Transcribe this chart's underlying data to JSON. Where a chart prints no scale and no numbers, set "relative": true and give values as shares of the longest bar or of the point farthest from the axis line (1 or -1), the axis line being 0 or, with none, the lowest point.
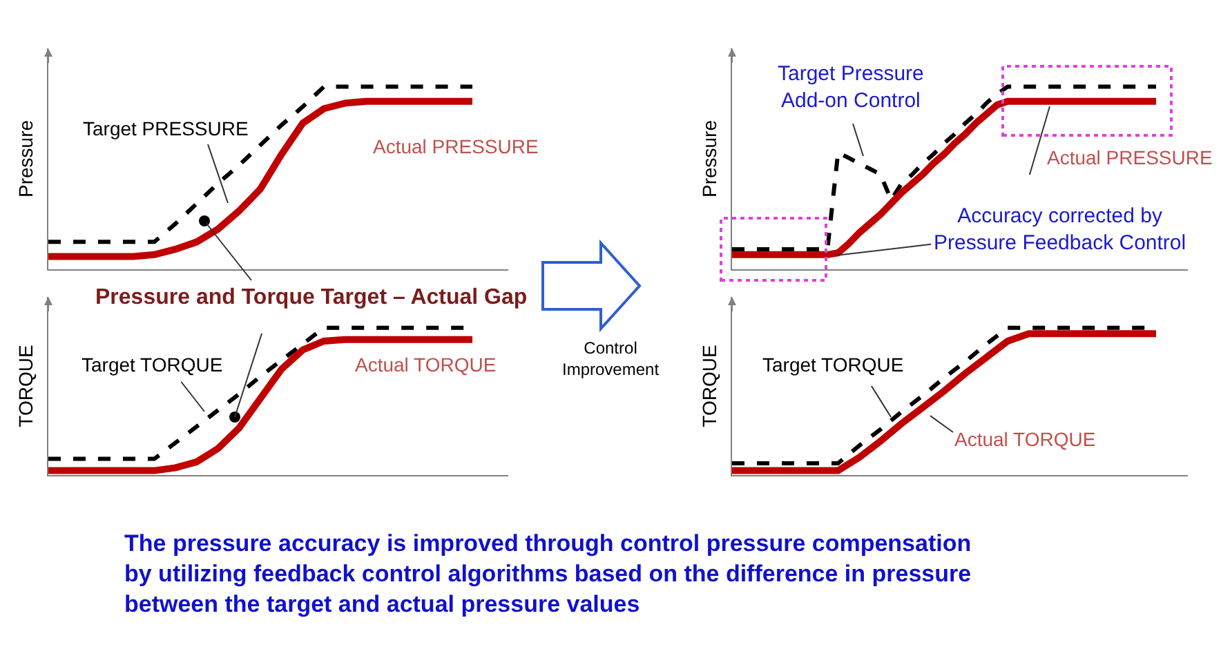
{
  "chart_data": [
    {
      "type": "line",
      "relative": true,
      "ylabel": "Pressure",
      "legend": false,
      "categories": [
        null,
        null,
        null,
        null,
        null,
        null,
        null,
        null,
        null,
        null,
        null,
        null,
        null,
        null,
        null,
        null,
        null,
        null,
        null,
        null,
        null
      ],
      "series": [
        {
          "name": "Target PRESSURE",
          "color": "#000000",
          "line_style": "dashed",
          "values": [
            0.15,
            0.15,
            0.15,
            0.15,
            0.15,
            0.15,
            0.25,
            0.36,
            0.47,
            0.57,
            0.68,
            0.79,
            0.89,
            1,
            1,
            1,
            1,
            1,
            1,
            1,
            1
          ]
        },
        {
          "name": "Actual PRESSURE",
          "color": "#c00000",
          "line_style": "solid",
          "values": [
            0.07,
            0.07,
            0.07,
            0.07,
            0.07,
            0.08,
            0.11,
            0.15,
            0.22,
            0.32,
            0.44,
            0.63,
            0.8,
            0.88,
            0.91,
            0.92,
            0.92,
            0.92,
            0.92,
            0.92,
            0.92
          ]
        }
      ],
      "annotations": [
        "Pressure and Torque Target – Actual Gap"
      ]
    },
    {
      "type": "line",
      "relative": true,
      "ylabel": "TORQUE",
      "legend": false,
      "categories": [
        null,
        null,
        null,
        null,
        null,
        null,
        null,
        null,
        null,
        null,
        null,
        null,
        null,
        null,
        null,
        null,
        null,
        null,
        null,
        null,
        null
      ],
      "series": [
        {
          "name": "Target TORQUE",
          "color": "#000000",
          "line_style": "dashed",
          "values": [
            0.11,
            0.11,
            0.11,
            0.11,
            0.11,
            0.11,
            0.22,
            0.33,
            0.44,
            0.55,
            0.67,
            0.78,
            0.89,
            1,
            1,
            1,
            1,
            1,
            1,
            1,
            1
          ]
        },
        {
          "name": "Actual TORQUE",
          "color": "#c00000",
          "line_style": "solid",
          "values": [
            0.03,
            0.03,
            0.03,
            0.03,
            0.03,
            0.03,
            0.05,
            0.09,
            0.18,
            0.32,
            0.52,
            0.72,
            0.85,
            0.91,
            0.92,
            0.92,
            0.92,
            0.92,
            0.92,
            0.92,
            0.92
          ]
        }
      ]
    },
    {
      "type": "line",
      "relative": true,
      "ylabel": "Pressure",
      "legend": false,
      "categories": [
        null,
        null,
        null,
        null,
        null,
        null,
        null,
        null,
        null,
        null,
        null,
        null,
        null,
        null,
        null,
        null,
        null,
        null,
        null,
        null,
        null,
        null,
        null,
        null,
        null,
        null,
        null,
        null,
        null,
        null,
        null,
        null,
        null,
        null,
        null,
        null,
        null,
        null,
        null,
        null,
        null
      ],
      "series": [
        {
          "color": "#000000",
          "line_style": "dashed",
          "values": [
            0.11,
            0.11,
            0.11,
            0.11,
            0.11,
            0.11,
            0.11,
            0.11,
            0.11,
            0.11,
            0.64,
            0.61,
            0.58,
            0.55,
            0.52,
            0.38,
            0.47,
            0.52,
            0.58,
            0.63,
            0.69,
            0.74,
            0.8,
            0.85,
            0.91,
            0.96,
            1,
            1,
            1,
            1,
            1,
            1,
            1,
            1,
            1,
            1,
            1,
            1,
            1,
            1,
            1
          ]
        },
        {
          "name": "Actual PRESSURE",
          "color": "#c00000",
          "line_style": "solid",
          "values": [
            0.08,
            0.08,
            0.08,
            0.08,
            0.08,
            0.08,
            0.08,
            0.08,
            0.08,
            0.08,
            0.09,
            0.14,
            0.2,
            0.25,
            0.3,
            0.36,
            0.42,
            0.47,
            0.52,
            0.58,
            0.63,
            0.69,
            0.74,
            0.8,
            0.85,
            0.9,
            0.92,
            0.92,
            0.92,
            0.92,
            0.92,
            0.92,
            0.92,
            0.92,
            0.92,
            0.92,
            0.92,
            0.92,
            0.92,
            0.92,
            0.92
          ]
        }
      ],
      "annotations": [
        "Target Pressure\nAdd-on Control",
        "Accuracy corrected by\nPressure Feedback Control"
      ]
    },
    {
      "type": "line",
      "relative": true,
      "ylabel": "TORQUE",
      "legend": false,
      "categories": [
        null,
        null,
        null,
        null,
        null,
        null,
        null,
        null,
        null,
        null,
        null,
        null,
        null,
        null,
        null,
        null,
        null,
        null,
        null,
        null,
        null
      ],
      "series": [
        {
          "name": "Target TORQUE",
          "color": "#000000",
          "line_style": "dashed",
          "values": [
            0.08,
            0.08,
            0.08,
            0.08,
            0.08,
            0.08,
            0.2,
            0.31,
            0.43,
            0.54,
            0.66,
            0.77,
            0.89,
            1,
            1,
            1,
            1,
            1,
            1,
            1,
            1
          ]
        },
        {
          "name": "Actual TORQUE",
          "color": "#c00000",
          "line_style": "solid",
          "values": [
            0.03,
            0.03,
            0.03,
            0.03,
            0.03,
            0.03,
            0.12,
            0.23,
            0.35,
            0.46,
            0.57,
            0.69,
            0.8,
            0.91,
            0.96,
            0.96,
            0.96,
            0.96,
            0.96,
            0.96,
            0.96
          ]
        }
      ]
    },
    {
      "type": "other",
      "annotations": [
        "Control\nImprovement",
        "The pressure accuracy is improved through control pressure compensation\nby utilizing feedback control algorithms based on the difference in pressure\nbetween the target and actual pressure values"
      ]
    }
  ]
}
